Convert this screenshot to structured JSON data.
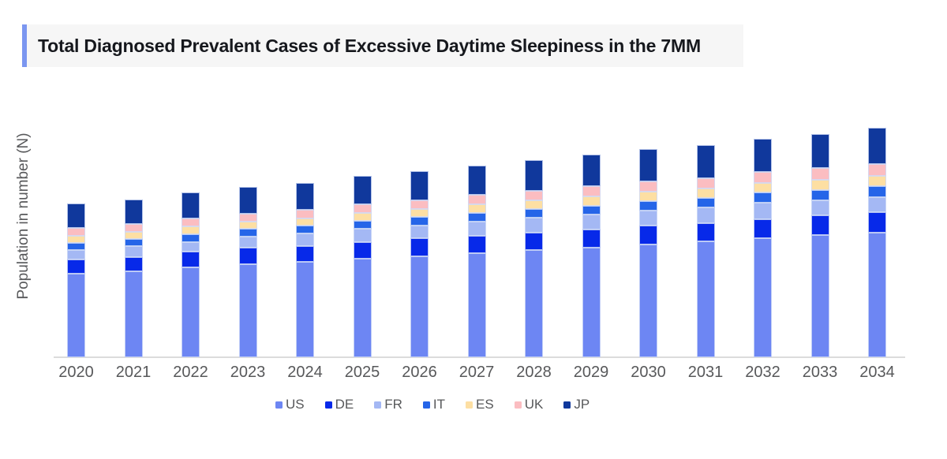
{
  "header": {
    "title": "Total Diagnosed Prevalent Cases of Excessive Daytime Sleepiness in the 7MM",
    "accent_color": "#7b96f0",
    "title_bg_color": "#f6f6f6",
    "title_text_color": "#16181d"
  },
  "chart_data": {
    "type": "bar",
    "stacked": true,
    "title": "Total Diagnosed Prevalent Cases of Excessive Daytime Sleepiness in the 7MM",
    "xlabel": "",
    "ylabel": "Population in number (N)",
    "y_axis_numeric_labels_shown": false,
    "grid": "off",
    "legend_position": "bottom-center",
    "values_are": "pixel-proportional relative units (no numeric axis labels visible)",
    "categories": [
      "2020",
      "2021",
      "2022",
      "2023",
      "2024",
      "2025",
      "2026",
      "2027",
      "2028",
      "2029",
      "2030",
      "2031",
      "2032",
      "2033",
      "2034"
    ],
    "series": [
      {
        "name": "US",
        "color": "#6d86f3",
        "values": [
          106,
          109,
          114,
          118,
          121,
          125,
          128,
          132,
          136,
          139,
          143,
          147,
          151,
          155,
          158
        ]
      },
      {
        "name": "DE",
        "color": "#0729e9",
        "values": [
          18,
          18,
          20,
          21,
          20,
          21,
          23,
          22,
          22,
          23,
          24,
          23,
          24,
          25,
          26
        ]
      },
      {
        "name": "FR",
        "color": "#a4b8f4",
        "values": [
          12,
          14,
          12,
          14,
          16,
          17,
          16,
          18,
          19,
          19,
          19,
          20,
          21,
          19,
          19
        ]
      },
      {
        "name": "IT",
        "color": "#2565e8",
        "values": [
          9,
          9,
          10,
          10,
          10,
          10,
          11,
          11,
          11,
          11,
          12,
          12,
          13,
          13,
          14
        ]
      },
      {
        "name": "ES",
        "color": "#fddfa3",
        "values": [
          9,
          9,
          10,
          9,
          9,
          10,
          10,
          11,
          11,
          12,
          12,
          12,
          12,
          13,
          13
        ]
      },
      {
        "name": "UK",
        "color": "#fbbdc1",
        "values": [
          10,
          10,
          10,
          10,
          11,
          11,
          11,
          12,
          12,
          13,
          13,
          13,
          14,
          15,
          15
        ]
      },
      {
        "name": "JP",
        "color": "#10389c",
        "values": [
          31,
          31,
          33,
          34,
          34,
          36,
          37,
          37,
          39,
          40,
          41,
          42,
          42,
          43,
          46
        ]
      }
    ],
    "totals": [
      195,
      200,
      209,
      216,
      221,
      230,
      236,
      243,
      250,
      257,
      264,
      269,
      277,
      283,
      291
    ]
  },
  "axis_text_color": "#57585a"
}
